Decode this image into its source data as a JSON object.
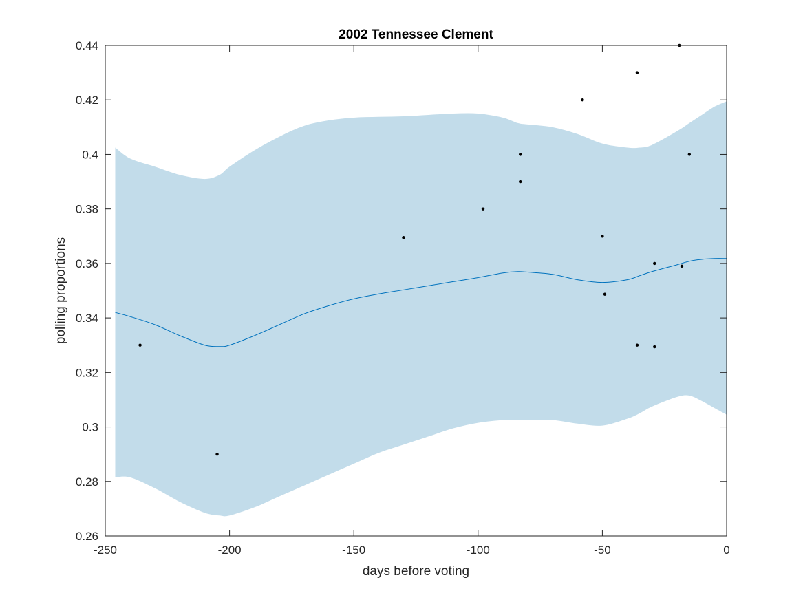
{
  "chart_data": {
    "type": "line",
    "title": "2002 Tennessee Clement",
    "xlabel": "days before voting",
    "ylabel": "polling proportions",
    "xlim": [
      -250,
      0
    ],
    "ylim": [
      0.26,
      0.44
    ],
    "grid": false,
    "legend": "none",
    "x_ticks": [
      -250,
      -200,
      -150,
      -100,
      -50,
      0
    ],
    "x_tick_labels": [
      "-250",
      "-200",
      "-150",
      "-100",
      "-50",
      "0"
    ],
    "y_ticks": [
      0.26,
      0.28,
      0.3,
      0.32,
      0.34,
      0.36,
      0.38,
      0.4,
      0.42,
      0.44
    ],
    "y_tick_labels": [
      "0.26",
      "0.28",
      "0.3",
      "0.32",
      "0.34",
      "0.36",
      "0.38",
      "0.4",
      "0.42",
      "0.44"
    ],
    "colors": {
      "band": "#c2dcea",
      "trend": "#0072bd",
      "points": "#000000",
      "axes": "#262626"
    },
    "series": [
      {
        "type": "band",
        "x": [
          -246,
          -240,
          -230,
          -220,
          -210,
          -204,
          -200,
          -190,
          -180,
          -170,
          -160,
          -150,
          -140,
          -130,
          -120,
          -110,
          -100,
          -90,
          -84,
          -80,
          -70,
          -60,
          -50,
          -40,
          -35,
          -30,
          -20,
          -15,
          -10,
          -5,
          0
        ],
        "upper": [
          0.4025,
          0.3985,
          0.3955,
          0.3925,
          0.391,
          0.3925,
          0.3955,
          0.4015,
          0.4065,
          0.4105,
          0.4125,
          0.4135,
          0.4138,
          0.414,
          0.4145,
          0.415,
          0.415,
          0.4135,
          0.4115,
          0.411,
          0.41,
          0.4075,
          0.404,
          0.4025,
          0.4025,
          0.4035,
          0.4085,
          0.4115,
          0.4145,
          0.4175,
          0.4195
        ],
        "lower": [
          0.2815,
          0.2815,
          0.2775,
          0.2725,
          0.2685,
          0.2675,
          0.2675,
          0.2705,
          0.2745,
          0.2785,
          0.2825,
          0.2865,
          0.2905,
          0.2935,
          0.2965,
          0.2995,
          0.3015,
          0.3025,
          0.3025,
          0.3025,
          0.3025,
          0.3012,
          0.3005,
          0.303,
          0.305,
          0.3075,
          0.311,
          0.3115,
          0.3095,
          0.307,
          0.3045
        ]
      },
      {
        "type": "line",
        "x": [
          -246,
          -240,
          -230,
          -220,
          -210,
          -204,
          -200,
          -190,
          -180,
          -170,
          -160,
          -150,
          -140,
          -130,
          -120,
          -110,
          -100,
          -90,
          -84,
          -80,
          -70,
          -60,
          -50,
          -40,
          -35,
          -30,
          -20,
          -15,
          -10,
          -5,
          0
        ],
        "y": [
          0.342,
          0.3405,
          0.3375,
          0.3335,
          0.33,
          0.3295,
          0.33,
          0.3335,
          0.3375,
          0.3415,
          0.3445,
          0.347,
          0.3488,
          0.3503,
          0.3518,
          0.3533,
          0.3548,
          0.3565,
          0.357,
          0.3568,
          0.356,
          0.354,
          0.353,
          0.354,
          0.3555,
          0.357,
          0.3595,
          0.3608,
          0.3615,
          0.3618,
          0.3618
        ]
      },
      {
        "type": "scatter",
        "x": [
          -236,
          -205,
          -130,
          -98,
          -83,
          -83,
          -58,
          -50,
          -49,
          -36,
          -36,
          -29,
          -29,
          -19,
          -18,
          -15
        ],
        "y": [
          0.33,
          0.29,
          0.3695,
          0.38,
          0.4,
          0.39,
          0.42,
          0.37,
          0.3487,
          0.43,
          0.33,
          0.36,
          0.3294,
          0.44,
          0.359,
          0.4
        ]
      }
    ]
  }
}
